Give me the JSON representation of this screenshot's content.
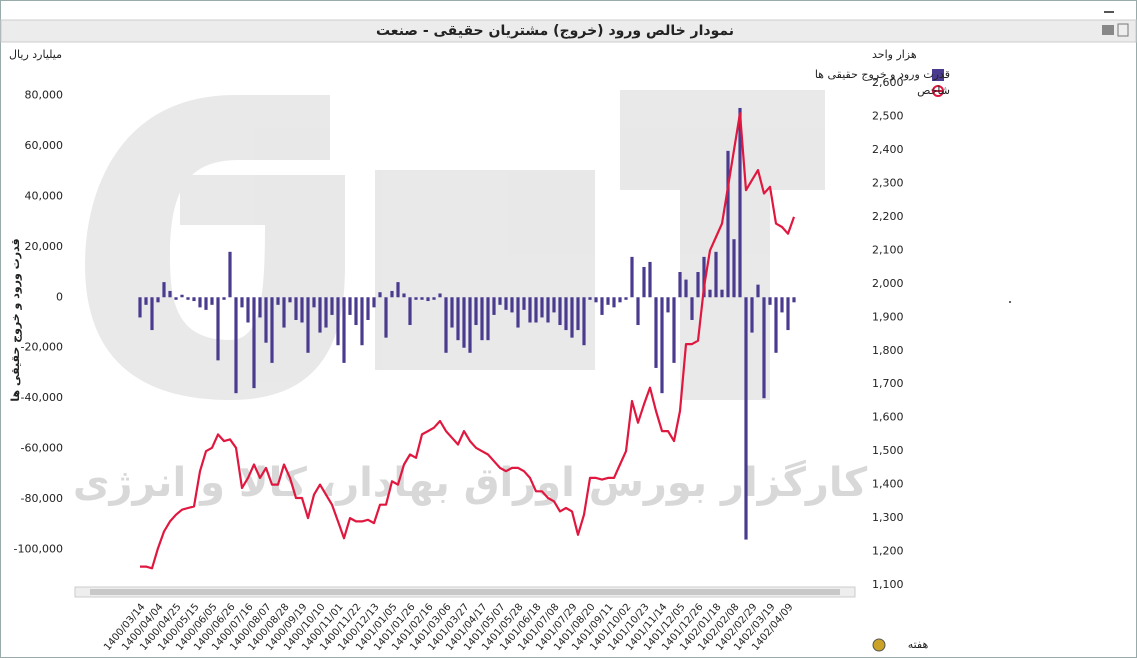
{
  "chart_data": {
    "type": "bar-line",
    "title": "نمودار خالص ورود (خروج) مشتریان حقیقی - صنعت",
    "y_unit": "میلیارد ریال",
    "y2_unit": "هزار واحد",
    "y_label": "قدرت ورود و خروج حقیقی ها",
    "x_label": "هفته",
    "watermark": "کارگزار بورس اوراق بهادار، کالا و انرژی",
    "categories": [
      "1400/03/14",
      null,
      null,
      "1400/04/04",
      null,
      null,
      "1400/04/25",
      null,
      null,
      "1400/05/15",
      null,
      null,
      "1400/06/05",
      null,
      null,
      "1400/06/26",
      null,
      null,
      "1400/07/16",
      null,
      null,
      "1400/08/07",
      null,
      null,
      "1400/08/28",
      null,
      null,
      "1400/09/19",
      null,
      null,
      "1400/10/10",
      null,
      null,
      "1400/11/01",
      null,
      null,
      "1400/11/22",
      null,
      null,
      "1400/12/13",
      null,
      null,
      "1401/01/05",
      null,
      null,
      "1401/01/26",
      null,
      null,
      "1401/02/16",
      null,
      null,
      "1401/03/06",
      null,
      null,
      "1401/03/27",
      null,
      null,
      "1401/04/17",
      null,
      null,
      "1401/05/07",
      null,
      null,
      "1401/05/28",
      null,
      null,
      "1401/06/18",
      null,
      null,
      "1401/07/08",
      null,
      null,
      "1401/07/29",
      null,
      null,
      "1401/08/20",
      null,
      null,
      "1401/09/11",
      null,
      null,
      "1401/10/02",
      null,
      null,
      "1401/10/23",
      null,
      null,
      "1401/11/14",
      null,
      null,
      "1401/12/05",
      null,
      null,
      "1401/12/26",
      null,
      null,
      "1402/01/18",
      null,
      null,
      "1402/02/08",
      null,
      null,
      "1402/02/29",
      null,
      null,
      "1402/03/19",
      null,
      null,
      "1402/04/09",
      null
    ],
    "series": [
      {
        "name": "قدرت ورود و خروج حقیقی ها",
        "type": "bar",
        "color": "#4b3b8f",
        "values": [
          -8000,
          -3000,
          -13000,
          -2000,
          6000,
          2500,
          -1000,
          1000,
          -1000,
          -1500,
          -4000,
          -5000,
          -3000,
          -25000,
          -1000,
          18000,
          -38000,
          -4000,
          -10000,
          -36000,
          -8000,
          -18000,
          -26000,
          -3000,
          -12000,
          -2000,
          -9000,
          -10000,
          -22000,
          -4000,
          -14000,
          -12000,
          -7000,
          -19000,
          -26000,
          -7000,
          -11000,
          -19000,
          -9000,
          -4000,
          2000,
          -16000,
          2500,
          6000,
          1500,
          -11000,
          -1000,
          -1000,
          -1500,
          -1000,
          1500,
          -22000,
          -12000,
          -17000,
          -20000,
          -22000,
          -11000,
          -17000,
          -17000,
          -7000,
          -3000,
          -5000,
          -6000,
          -12000,
          -5000,
          -10000,
          -10000,
          -8000,
          -10000,
          -6000,
          -11000,
          -13000,
          -16000,
          -13000,
          -19000,
          -1000,
          -2000,
          -7000,
          -3000,
          -4000,
          -2000,
          -1000,
          16000,
          -11000,
          12000,
          14000,
          -28000,
          -38000,
          -6000,
          -26000,
          10000,
          7000,
          -9000,
          10000,
          16000,
          3000,
          18000,
          3000,
          58000,
          23000,
          75000,
          -96000,
          -14000,
          5000,
          -40000,
          -3000,
          -22000,
          -6000,
          -13000,
          -2000
        ]
      },
      {
        "name": "شاخص",
        "type": "line",
        "axis": "y2",
        "color": "#e0173f",
        "values": [
          1155,
          1155,
          1150,
          1210,
          1260,
          1290,
          1310,
          1325,
          1330,
          1335,
          1440,
          1500,
          1510,
          1550,
          1530,
          1535,
          1510,
          1390,
          1420,
          1460,
          1420,
          1450,
          1400,
          1400,
          1460,
          1420,
          1360,
          1360,
          1300,
          1370,
          1400,
          1370,
          1340,
          1290,
          1240,
          1300,
          1290,
          1290,
          1295,
          1285,
          1340,
          1340,
          1410,
          1400,
          1460,
          1490,
          1480,
          1550,
          1560,
          1570,
          1590,
          1560,
          1540,
          1520,
          1560,
          1530,
          1510,
          1500,
          1490,
          1470,
          1450,
          1440,
          1450,
          1450,
          1440,
          1420,
          1380,
          1380,
          1360,
          1350,
          1320,
          1330,
          1320,
          1250,
          1310,
          1420,
          1420,
          1415,
          1420,
          1420,
          1460,
          1500,
          1650,
          1585,
          1640,
          1690,
          1620,
          1560,
          1560,
          1530,
          1620,
          1820,
          1820,
          1830,
          1990,
          2100,
          2140,
          2180,
          2290,
          2400,
          2510,
          2280,
          2310,
          2340,
          2270,
          2290,
          2180,
          2170,
          2150,
          2200
        ]
      }
    ],
    "ylim": [
      -114000,
      94000
    ],
    "yticks": [
      {
        "value": -100000,
        "label": "-100,000"
      },
      {
        "value": -80000,
        "label": "-80,000"
      },
      {
        "value": -60000,
        "label": "-60,000"
      },
      {
        "value": -40000,
        "label": "-40,000"
      },
      {
        "value": -20000,
        "label": "-20,000"
      },
      0,
      {
        "value": 20000,
        "label": "20,000"
      },
      {
        "value": 40000,
        "label": "40,000"
      },
      {
        "value": 60000,
        "label": "60,000"
      },
      {
        "value": 80000,
        "label": "80,000"
      }
    ],
    "y2lim": [
      1100,
      2669
    ],
    "y2ticks": [
      {
        "value": 1100,
        "label": "1,100"
      },
      {
        "value": 1200,
        "label": "1,200"
      },
      {
        "value": 1300,
        "label": "1,300"
      },
      {
        "value": 1400,
        "label": "1,400"
      },
      {
        "value": 1500,
        "label": "1,500"
      },
      {
        "value": 1600,
        "label": "1,600"
      },
      {
        "value": 1700,
        "label": "1,700"
      },
      {
        "value": 1800,
        "label": "1,800"
      },
      {
        "value": 1900,
        "label": "1,900"
      },
      {
        "value": 2000,
        "label": "2,000"
      },
      {
        "value": 2100,
        "label": "2,100"
      },
      {
        "value": 2200,
        "label": "2,200"
      },
      {
        "value": 2300,
        "label": "2,300"
      },
      {
        "value": 2400,
        "label": "2,400"
      },
      {
        "value": 2500,
        "label": "2,500"
      },
      {
        "value": 2600,
        "label": "2,600"
      }
    ],
    "grid": false,
    "legend": "top-right"
  }
}
